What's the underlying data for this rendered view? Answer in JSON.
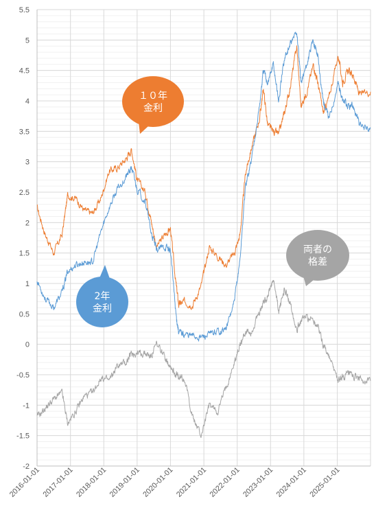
{
  "chart_data": {
    "type": "line",
    "title": "",
    "xlabel": "",
    "ylabel": "",
    "ylim": [
      -2,
      5.5
    ],
    "y_ticks": [
      "5.5",
      "5",
      "4.5",
      "4",
      "3.5",
      "3",
      "2.5",
      "2",
      "1.5",
      "1",
      "0.5",
      "0",
      "-0.5",
      "-1",
      "-1.5",
      "-2"
    ],
    "x_ticks": [
      "2016-01-01",
      "2017-01-01",
      "2018-01-01",
      "2019-01-01",
      "2020-01-01",
      "2021-01-01",
      "2022-01-01",
      "2023-01-01",
      "2024-01-01",
      "2025-01-01"
    ],
    "xlim": [
      "2016-01-01",
      "2025-12-31"
    ],
    "grid": true,
    "legend": "none",
    "series": [
      {
        "name": "10年 金利",
        "color": "#ED7D31",
        "x": [
          "2016-01-01",
          "2016-04-01",
          "2016-07-01",
          "2016-10-01",
          "2016-12-01",
          "2017-03-01",
          "2017-06-01",
          "2017-09-01",
          "2017-12-01",
          "2018-03-01",
          "2018-06-01",
          "2018-09-01",
          "2018-11-01",
          "2019-01-01",
          "2019-04-01",
          "2019-06-01",
          "2019-08-01",
          "2019-11-01",
          "2020-01-01",
          "2020-03-01",
          "2020-04-01",
          "2020-06-01",
          "2020-09-01",
          "2020-12-01",
          "2021-03-01",
          "2021-06-01",
          "2021-09-01",
          "2021-12-01",
          "2022-02-01",
          "2022-04-01",
          "2022-06-01",
          "2022-09-01",
          "2022-10-15",
          "2022-12-01",
          "2023-02-01",
          "2023-04-01",
          "2023-06-01",
          "2023-08-01",
          "2023-10-15",
          "2023-12-01",
          "2024-02-01",
          "2024-04-15",
          "2024-06-01",
          "2024-08-01",
          "2024-10-01",
          "2025-01-10",
          "2025-03-01",
          "2025-05-01",
          "2025-07-01",
          "2025-09-01",
          "2025-12-31"
        ],
        "values": [
          2.25,
          1.8,
          1.5,
          1.8,
          2.45,
          2.4,
          2.2,
          2.15,
          2.4,
          2.85,
          2.9,
          3.05,
          3.2,
          2.7,
          2.5,
          2.05,
          1.6,
          1.8,
          1.9,
          1.0,
          0.65,
          0.7,
          0.65,
          0.95,
          1.6,
          1.45,
          1.3,
          1.5,
          1.8,
          2.8,
          3.2,
          3.7,
          4.2,
          3.6,
          3.5,
          3.45,
          3.8,
          4.2,
          4.9,
          3.9,
          4.15,
          4.6,
          4.3,
          3.8,
          4.05,
          4.75,
          4.3,
          4.5,
          4.4,
          4.1,
          4.15
        ]
      },
      {
        "name": "2年 金利",
        "color": "#5B9BD5",
        "x": [
          "2016-01-01",
          "2016-04-01",
          "2016-07-01",
          "2016-10-01",
          "2016-12-01",
          "2017-03-01",
          "2017-06-01",
          "2017-09-01",
          "2017-12-01",
          "2018-03-01",
          "2018-06-01",
          "2018-09-01",
          "2018-11-01",
          "2019-01-01",
          "2019-04-01",
          "2019-06-01",
          "2019-08-01",
          "2019-11-01",
          "2020-01-01",
          "2020-03-01",
          "2020-04-01",
          "2020-06-01",
          "2020-09-01",
          "2020-12-01",
          "2021-03-01",
          "2021-06-01",
          "2021-09-01",
          "2021-12-01",
          "2022-02-01",
          "2022-04-01",
          "2022-06-01",
          "2022-09-01",
          "2022-10-15",
          "2022-12-01",
          "2023-02-01",
          "2023-04-01",
          "2023-06-01",
          "2023-08-01",
          "2023-10-15",
          "2023-12-01",
          "2024-02-01",
          "2024-04-15",
          "2024-06-01",
          "2024-08-01",
          "2024-10-01",
          "2025-01-10",
          "2025-03-01",
          "2025-05-01",
          "2025-07-01",
          "2025-09-01",
          "2025-12-31"
        ],
        "values": [
          1.05,
          0.75,
          0.6,
          0.85,
          1.2,
          1.3,
          1.35,
          1.35,
          1.85,
          2.25,
          2.55,
          2.75,
          2.9,
          2.55,
          2.35,
          1.85,
          1.55,
          1.6,
          1.55,
          0.5,
          0.2,
          0.17,
          0.14,
          0.12,
          0.15,
          0.22,
          0.25,
          0.7,
          1.4,
          2.6,
          3.0,
          3.9,
          4.5,
          4.3,
          4.6,
          4.0,
          4.7,
          4.9,
          5.15,
          4.3,
          4.6,
          5.0,
          4.75,
          4.0,
          3.7,
          4.3,
          4.0,
          3.9,
          3.9,
          3.6,
          3.55
        ]
      },
      {
        "name": "両者の 格差",
        "color": "#A5A5A5",
        "x": [
          "2016-01-01",
          "2016-04-01",
          "2016-07-01",
          "2016-10-01",
          "2016-12-01",
          "2017-03-01",
          "2017-06-01",
          "2017-09-01",
          "2017-12-01",
          "2018-03-01",
          "2018-06-01",
          "2018-09-01",
          "2018-11-01",
          "2019-01-01",
          "2019-04-01",
          "2019-06-01",
          "2019-08-01",
          "2019-11-01",
          "2020-01-01",
          "2020-03-01",
          "2020-04-01",
          "2020-06-01",
          "2020-09-01",
          "2020-12-01",
          "2021-03-01",
          "2021-06-01",
          "2021-09-01",
          "2021-12-01",
          "2022-02-01",
          "2022-04-01",
          "2022-06-01",
          "2022-09-01",
          "2022-10-15",
          "2022-12-01",
          "2023-02-01",
          "2023-04-01",
          "2023-06-01",
          "2023-08-01",
          "2023-10-15",
          "2023-12-01",
          "2024-02-01",
          "2024-04-15",
          "2024-06-01",
          "2024-08-01",
          "2024-10-01",
          "2025-01-10",
          "2025-03-01",
          "2025-05-01",
          "2025-07-01",
          "2025-09-01",
          "2025-12-31"
        ],
        "values": [
          -1.2,
          -1.05,
          -0.9,
          -0.8,
          -1.3,
          -1.1,
          -0.85,
          -0.8,
          -0.55,
          -0.6,
          -0.35,
          -0.3,
          -0.15,
          -0.15,
          -0.15,
          -0.2,
          0.0,
          -0.2,
          -0.35,
          -0.5,
          -0.55,
          -0.55,
          -1.2,
          -1.5,
          -1.0,
          -1.1,
          -0.7,
          -0.3,
          0.0,
          0.2,
          0.2,
          0.5,
          0.7,
          0.8,
          1.05,
          0.55,
          0.9,
          0.7,
          0.25,
          0.4,
          0.45,
          0.4,
          0.3,
          0.0,
          -0.2,
          -0.6,
          -0.55,
          -0.5,
          -0.55,
          -0.55,
          -0.6
        ]
      }
    ],
    "annotations": [
      {
        "text_lines": [
          "１０年",
          "金利"
        ],
        "color": "#ED7D31",
        "text_color": "#ffffff"
      },
      {
        "text_lines": [
          "2年",
          "金利"
        ],
        "color": "#5B9BD5",
        "text_color": "#ffffff"
      },
      {
        "text_lines": [
          "両者の",
          "格差"
        ],
        "color": "#A5A5A5",
        "text_color": "#ffffff"
      }
    ]
  }
}
